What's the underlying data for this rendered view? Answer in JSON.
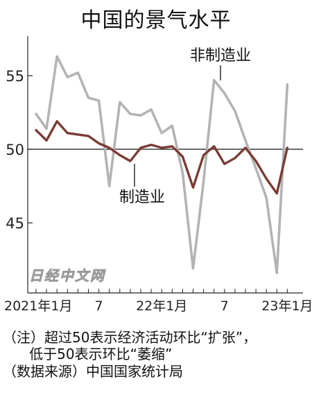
{
  "chart_data": {
    "type": "line",
    "title": "中国的景气水平",
    "xlabel": "",
    "ylabel": "",
    "ylim": [
      41,
      57
    ],
    "yticks": [
      45,
      50,
      55
    ],
    "reference_line": 50,
    "grid": false,
    "x_tick_labels": [
      {
        "index": 0,
        "label": "2021年1月"
      },
      {
        "index": 6,
        "label": "7"
      },
      {
        "index": 12,
        "label": "22年1月"
      },
      {
        "index": 18,
        "label": "7"
      },
      {
        "index": 24,
        "label": "23年1月"
      }
    ],
    "series": [
      {
        "name": "非制造业",
        "color": "#b3b3b3",
        "values": [
          52.4,
          51.4,
          56.3,
          54.9,
          55.2,
          53.5,
          53.3,
          47.5,
          53.2,
          52.4,
          52.3,
          52.7,
          51.1,
          51.6,
          48.4,
          41.9,
          47.8,
          54.7,
          53.8,
          52.6,
          50.6,
          48.7,
          46.7,
          41.6,
          54.4
        ]
      },
      {
        "name": "制造业",
        "color": "#7a3c34",
        "values": [
          51.3,
          50.6,
          51.9,
          51.1,
          51.0,
          50.9,
          50.4,
          50.1,
          49.6,
          49.2,
          50.1,
          50.3,
          50.1,
          50.2,
          49.5,
          47.4,
          49.6,
          50.2,
          49.0,
          49.4,
          50.1,
          49.2,
          48.0,
          47.0,
          50.1
        ]
      }
    ],
    "annotations": {
      "nonmfg_label": "非制造业",
      "mfg_label": "制造业"
    },
    "watermark": "日经中文网"
  },
  "notes": {
    "line1": "（注）超过50表示经济活动环比“扩张”，",
    "line2": "      低于50表示环比“萎缩”",
    "source": "（数据来源）中国国家统计局"
  }
}
